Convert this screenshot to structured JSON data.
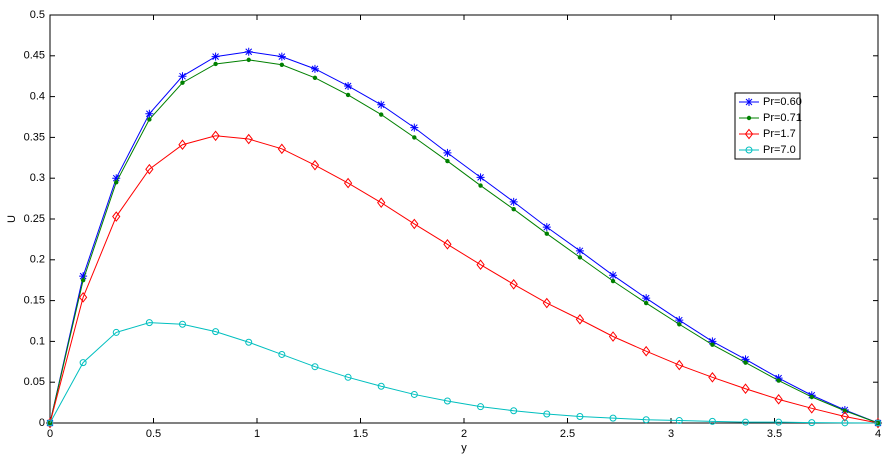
{
  "chart_data": {
    "type": "line",
    "xlabel": "y",
    "ylabel": "U",
    "x": [
      0,
      0.16,
      0.32,
      0.48,
      0.64,
      0.8,
      0.96,
      1.12,
      1.28,
      1.44,
      1.6,
      1.76,
      1.92,
      2.08,
      2.24,
      2.4,
      2.56,
      2.72,
      2.88,
      3.04,
      3.2,
      3.36,
      3.52,
      3.68,
      3.84,
      4
    ],
    "series": [
      {
        "name": "Pr=0.60",
        "color": "#0000ff",
        "marker": "star",
        "values": [
          0,
          0.18,
          0.3,
          0.379,
          0.425,
          0.449,
          0.455,
          0.449,
          0.434,
          0.413,
          0.39,
          0.362,
          0.331,
          0.301,
          0.271,
          0.24,
          0.211,
          0.181,
          0.153,
          0.126,
          0.1,
          0.078,
          0.055,
          0.034,
          0.016,
          0
        ]
      },
      {
        "name": "Pr=0.71",
        "color": "#008000",
        "marker": "dot",
        "values": [
          0,
          0.175,
          0.295,
          0.372,
          0.417,
          0.44,
          0.445,
          0.439,
          0.423,
          0.402,
          0.378,
          0.35,
          0.321,
          0.291,
          0.262,
          0.232,
          0.203,
          0.174,
          0.147,
          0.121,
          0.096,
          0.074,
          0.052,
          0.032,
          0.015,
          0
        ]
      },
      {
        "name": "Pr=1.7",
        "color": "#ff0000",
        "marker": "diamond",
        "values": [
          0,
          0.154,
          0.253,
          0.311,
          0.341,
          0.352,
          0.348,
          0.336,
          0.316,
          0.294,
          0.27,
          0.244,
          0.219,
          0.194,
          0.17,
          0.147,
          0.127,
          0.106,
          0.088,
          0.071,
          0.056,
          0.042,
          0.029,
          0.018,
          0.008,
          0
        ]
      },
      {
        "name": "Pr=7.0",
        "color": "#00bfbf",
        "marker": "circle",
        "values": [
          0,
          0.074,
          0.111,
          0.123,
          0.121,
          0.112,
          0.099,
          0.084,
          0.069,
          0.056,
          0.045,
          0.035,
          0.027,
          0.02,
          0.015,
          0.011,
          0.008,
          0.006,
          0.004,
          0.003,
          0.002,
          0.001,
          0.001,
          0.0005,
          0.0002,
          0
        ]
      }
    ],
    "xlim": [
      0,
      4
    ],
    "xticks": [
      0,
      0.5,
      1,
      1.5,
      2,
      2.5,
      3,
      3.5,
      4
    ],
    "ylim": [
      0,
      0.5
    ],
    "yticks": [
      0,
      0.05,
      0.1,
      0.15,
      0.2,
      0.25,
      0.3,
      0.35,
      0.4,
      0.45,
      0.5
    ],
    "grid": false,
    "legend": "upper right"
  }
}
